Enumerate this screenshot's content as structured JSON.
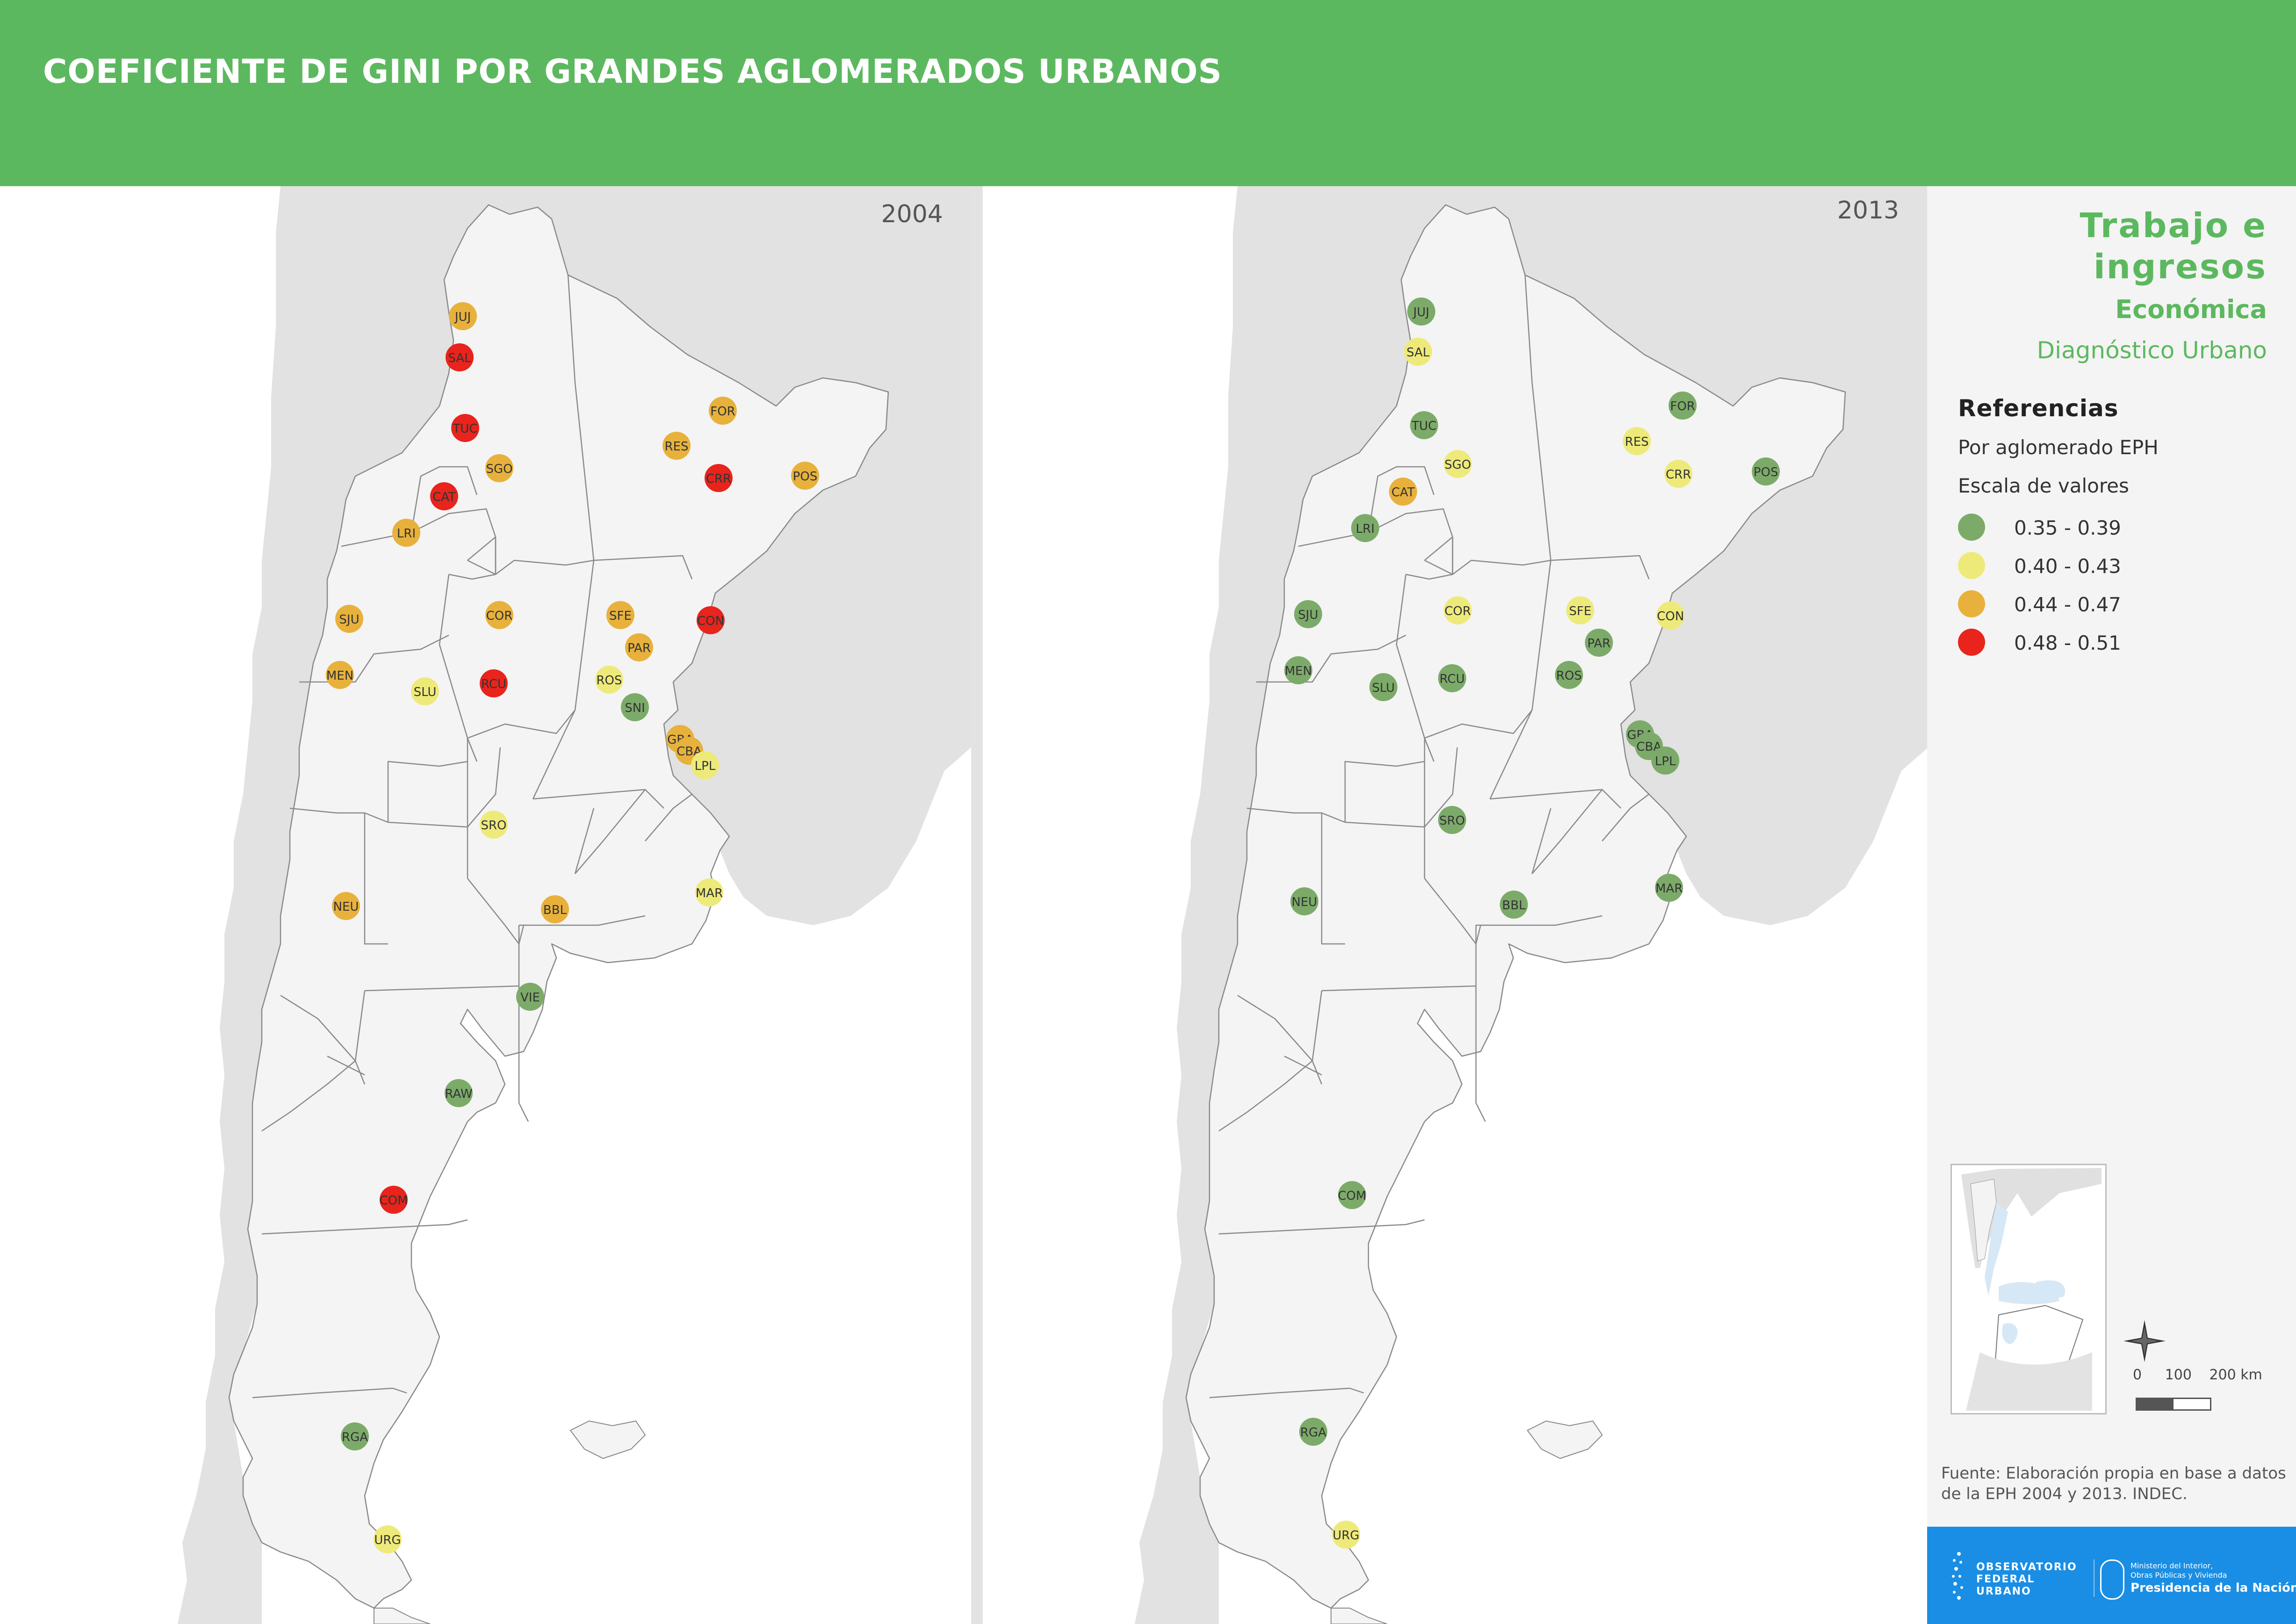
{
  "header": {
    "title": "COEFICIENTE DE GINI POR GRANDES AGLOMERADOS URBANOS"
  },
  "colors": {
    "header_bg": "#5cb85f",
    "green": "#7cab69",
    "yellow": "#eeea7a",
    "orange": "#e7b13c",
    "red": "#e8241c"
  },
  "maps": [
    {
      "year": "2004",
      "points": [
        {
          "code": "JUJ",
          "cls": "orange"
        },
        {
          "code": "SAL",
          "cls": "red"
        },
        {
          "code": "TUC",
          "cls": "red"
        },
        {
          "code": "FOR",
          "cls": "orange"
        },
        {
          "code": "RES",
          "cls": "orange"
        },
        {
          "code": "SGO",
          "cls": "orange"
        },
        {
          "code": "CRR",
          "cls": "red"
        },
        {
          "code": "POS",
          "cls": "orange"
        },
        {
          "code": "CAT",
          "cls": "red"
        },
        {
          "code": "LRI",
          "cls": "orange"
        },
        {
          "code": "SJU",
          "cls": "orange"
        },
        {
          "code": "COR",
          "cls": "orange"
        },
        {
          "code": "SFE",
          "cls": "orange"
        },
        {
          "code": "CON",
          "cls": "red"
        },
        {
          "code": "PAR",
          "cls": "orange"
        },
        {
          "code": "MEN",
          "cls": "orange"
        },
        {
          "code": "SLU",
          "cls": "yellow"
        },
        {
          "code": "RCU",
          "cls": "red"
        },
        {
          "code": "ROS",
          "cls": "yellow"
        },
        {
          "code": "SNI",
          "cls": "green"
        },
        {
          "code": "GBA",
          "cls": "orange"
        },
        {
          "code": "CBA",
          "cls": "orange"
        },
        {
          "code": "LPL",
          "cls": "yellow"
        },
        {
          "code": "SRO",
          "cls": "yellow"
        },
        {
          "code": "MAR",
          "cls": "yellow"
        },
        {
          "code": "NEU",
          "cls": "orange"
        },
        {
          "code": "BBL",
          "cls": "orange"
        },
        {
          "code": "VIE",
          "cls": "green"
        },
        {
          "code": "RAW",
          "cls": "green"
        },
        {
          "code": "COM",
          "cls": "red"
        },
        {
          "code": "RGA",
          "cls": "green"
        },
        {
          "code": "URG",
          "cls": "yellow"
        }
      ]
    },
    {
      "year": "2013",
      "points": [
        {
          "code": "JUJ",
          "cls": "green"
        },
        {
          "code": "SAL",
          "cls": "yellow"
        },
        {
          "code": "FOR",
          "cls": "green"
        },
        {
          "code": "TUC",
          "cls": "green"
        },
        {
          "code": "RES",
          "cls": "yellow"
        },
        {
          "code": "SGO",
          "cls": "yellow"
        },
        {
          "code": "CRR",
          "cls": "yellow"
        },
        {
          "code": "POS",
          "cls": "green"
        },
        {
          "code": "CAT",
          "cls": "orange"
        },
        {
          "code": "LRI",
          "cls": "green"
        },
        {
          "code": "SJU",
          "cls": "green"
        },
        {
          "code": "COR",
          "cls": "yellow"
        },
        {
          "code": "SFE",
          "cls": "yellow"
        },
        {
          "code": "CON",
          "cls": "yellow"
        },
        {
          "code": "PAR",
          "cls": "green"
        },
        {
          "code": "MEN",
          "cls": "green"
        },
        {
          "code": "SLU",
          "cls": "green"
        },
        {
          "code": "RCU",
          "cls": "green"
        },
        {
          "code": "ROS",
          "cls": "green"
        },
        {
          "code": "GBA",
          "cls": "green"
        },
        {
          "code": "CBA",
          "cls": "green"
        },
        {
          "code": "LPL",
          "cls": "green"
        },
        {
          "code": "SRO",
          "cls": "green"
        },
        {
          "code": "MAR",
          "cls": "green"
        },
        {
          "code": "NEU",
          "cls": "green"
        },
        {
          "code": "BBL",
          "cls": "green"
        },
        {
          "code": "COM",
          "cls": "green"
        },
        {
          "code": "RGA",
          "cls": "green"
        },
        {
          "code": "URG",
          "cls": "yellow"
        }
      ]
    }
  ],
  "sidebar": {
    "theme": "Trabajo e ingresos",
    "category": "Económica",
    "subtitle": "Diagnóstico Urbano",
    "references_title": "Referencias",
    "per_agglomerate": "Por aglomerado EPH",
    "scale_title": "Escala de valores",
    "legend": [
      {
        "label": "0.35 - 0.39",
        "color": "#7cab69"
      },
      {
        "label": "0.40 - 0.43",
        "color": "#eeea7a"
      },
      {
        "label": "0.44 - 0.47",
        "color": "#e7b13c"
      },
      {
        "label": "0.48 - 0.51",
        "color": "#e8241c"
      }
    ],
    "scale": {
      "zero": "0",
      "mid": "100",
      "end": "200 km"
    },
    "source": "Fuente: Elaboración propia en base a datos de la EPH 2004 y 2013. INDEC."
  },
  "footer": {
    "observatory_line1": "OBSERVATORIO",
    "observatory_line2": "FEDERAL",
    "observatory_line3": "URBANO",
    "ministry_line1": "Ministerio del Interior,",
    "ministry_line2": "Obras Públicas y Vivienda",
    "presidency": "Presidencia de la Nación"
  }
}
